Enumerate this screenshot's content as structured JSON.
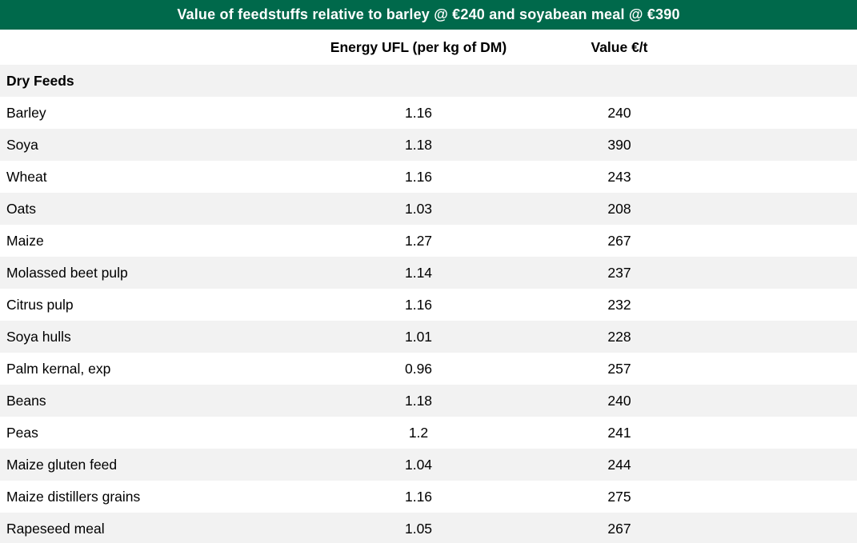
{
  "title_bar": {
    "text": "Value of feedstuffs relative to barley @ €240 and soyabean meal @ €390"
  },
  "chart_data": {
    "type": "table",
    "title": "Value of feedstuffs relative to barley @ €240 and soyabean meal @ €390",
    "columns": [
      "",
      "Energy UFL (per kg of DM)",
      "Value €/t"
    ],
    "section": "Dry Feeds",
    "rows": [
      {
        "name": "Barley",
        "ufl": "1.16",
        "value": "240"
      },
      {
        "name": "Soya",
        "ufl": "1.18",
        "value": "390"
      },
      {
        "name": "Wheat",
        "ufl": "1.16",
        "value": "243"
      },
      {
        "name": "Oats",
        "ufl": "1.03",
        "value": "208"
      },
      {
        "name": "Maize",
        "ufl": "1.27",
        "value": "267"
      },
      {
        "name": "Molassed beet pulp",
        "ufl": "1.14",
        "value": "237"
      },
      {
        "name": "Citrus pulp",
        "ufl": "1.16",
        "value": "232"
      },
      {
        "name": "Soya hulls",
        "ufl": "1.01",
        "value": "228"
      },
      {
        "name": "Palm kernal, exp",
        "ufl": "0.96",
        "value": "257"
      },
      {
        "name": "Beans",
        "ufl": "1.18",
        "value": "240"
      },
      {
        "name": "Peas",
        "ufl": "1.2",
        "value": "241"
      },
      {
        "name": "Maize gluten feed",
        "ufl": "1.04",
        "value": "244"
      },
      {
        "name": "Maize distillers grains",
        "ufl": "1.16",
        "value": "275"
      },
      {
        "name": "Rapeseed meal",
        "ufl": "1.05",
        "value": "267"
      }
    ]
  },
  "colors": {
    "title_bg": "#00694B",
    "title_text": "#ffffff",
    "band": "#f2f2f2",
    "text": "#000000"
  }
}
